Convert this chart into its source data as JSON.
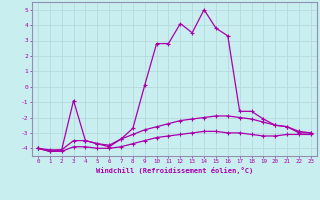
{
  "xlabel": "Windchill (Refroidissement éolien,°C)",
  "background_color": "#c8eef0",
  "grid_color": "#b8d8dc",
  "line_color": "#aa00aa",
  "xlim": [
    -0.5,
    23.5
  ],
  "ylim": [
    -4.5,
    5.5
  ],
  "yticks": [
    -4,
    -3,
    -2,
    -1,
    0,
    1,
    2,
    3,
    4,
    5
  ],
  "xticks": [
    0,
    1,
    2,
    3,
    4,
    5,
    6,
    7,
    8,
    9,
    10,
    11,
    12,
    13,
    14,
    15,
    16,
    17,
    18,
    19,
    20,
    21,
    22,
    23
  ],
  "line1_x": [
    0,
    1,
    2,
    3,
    4,
    5,
    6,
    7,
    8,
    9,
    10,
    11,
    12,
    13,
    14,
    15,
    16,
    17,
    18,
    19,
    20,
    21,
    22,
    23
  ],
  "line1_y": [
    -4.0,
    -4.2,
    -4.1,
    -0.9,
    -3.5,
    -3.7,
    -3.9,
    -3.4,
    -2.7,
    0.1,
    2.8,
    2.8,
    4.1,
    3.5,
    5.0,
    3.8,
    3.3,
    -1.6,
    -1.6,
    -2.1,
    -2.5,
    -2.6,
    -3.0,
    -3.0
  ],
  "line2_x": [
    0,
    1,
    2,
    3,
    4,
    5,
    6,
    7,
    8,
    9,
    10,
    11,
    12,
    13,
    14,
    15,
    16,
    17,
    18,
    19,
    20,
    21,
    22,
    23
  ],
  "line2_y": [
    -4.0,
    -4.1,
    -4.1,
    -3.5,
    -3.5,
    -3.7,
    -3.8,
    -3.4,
    -3.1,
    -2.8,
    -2.6,
    -2.4,
    -2.2,
    -2.1,
    -2.0,
    -1.9,
    -1.9,
    -2.0,
    -2.1,
    -2.3,
    -2.5,
    -2.6,
    -2.9,
    -3.0
  ],
  "line3_x": [
    0,
    1,
    2,
    3,
    4,
    5,
    6,
    7,
    8,
    9,
    10,
    11,
    12,
    13,
    14,
    15,
    16,
    17,
    18,
    19,
    20,
    21,
    22,
    23
  ],
  "line3_y": [
    -4.0,
    -4.2,
    -4.2,
    -3.9,
    -3.9,
    -4.0,
    -4.0,
    -3.9,
    -3.7,
    -3.5,
    -3.3,
    -3.2,
    -3.1,
    -3.0,
    -2.9,
    -2.9,
    -3.0,
    -3.0,
    -3.1,
    -3.2,
    -3.2,
    -3.1,
    -3.1,
    -3.1
  ]
}
